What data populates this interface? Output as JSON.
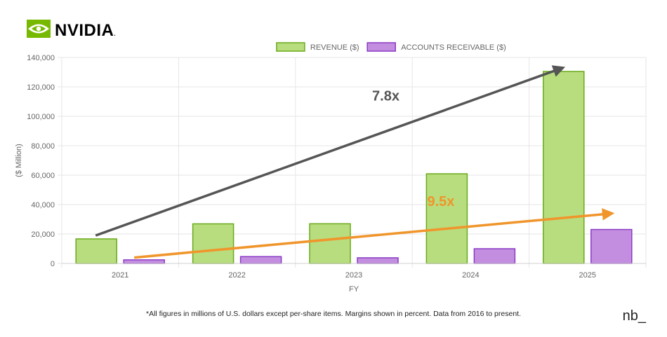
{
  "brand": {
    "name": "NVIDIA",
    "color": "#76b900"
  },
  "footnote": "*All figures in millions of U.S. dollars except per-share items. Margins shown in percent. Data from 2016 to present.",
  "signature": "nb_",
  "chart_data": {
    "type": "bar",
    "categories": [
      "2021",
      "2022",
      "2023",
      "2024",
      "2025"
    ],
    "series": [
      {
        "name": "REVENUE ($)",
        "values": [
          16675,
          26914,
          26974,
          60922,
          130497
        ],
        "fill": "#b8dd7e",
        "stroke": "#6aaa1c"
      },
      {
        "name": "ACCOUNTS RECEIVABLE ($)",
        "values": [
          2429,
          4650,
          3827,
          9999,
          23065
        ],
        "fill": "#c38ee0",
        "stroke": "#8a3bc4"
      }
    ],
    "xlabel": "FY",
    "ylabel": "($ Million)",
    "ylim": [
      0,
      140000
    ],
    "yticks": [
      0,
      20000,
      40000,
      60000,
      80000,
      100000,
      120000,
      140000
    ],
    "ytick_labels": [
      "0",
      "20,000",
      "40,000",
      "60,000",
      "80,000",
      "100,000",
      "120,000",
      "140,000"
    ],
    "grid": true,
    "legend_position": "top-center",
    "annotations": [
      {
        "text": "7.8x",
        "color": "#555555",
        "from": {
          "x": "2021",
          "y": 19000
        },
        "to": {
          "x": "2025",
          "y": 133000
        }
      },
      {
        "text": "9.5x",
        "color": "#f0952b",
        "from": {
          "x": "2021",
          "y": 4000
        },
        "to": {
          "x": "2025",
          "y": 34000
        }
      }
    ]
  }
}
